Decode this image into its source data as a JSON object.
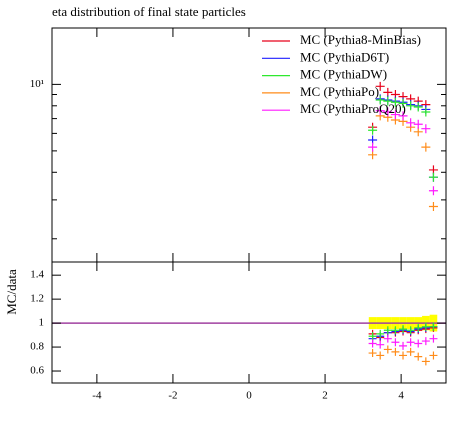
{
  "chart_data": [
    {
      "type": "scatter",
      "title": "eta distribution of final state particles",
      "x": [
        3.25,
        3.45,
        3.65,
        3.85,
        4.05,
        4.25,
        4.45,
        4.65,
        4.85
      ],
      "series": [
        {
          "name": "MC (Pythia8-MinBias)",
          "color": "#e8001a",
          "values": [
            6.4,
            9.8,
            9.2,
            9.0,
            8.8,
            8.6,
            8.4,
            8.1,
            4.1
          ]
        },
        {
          "name": "MC (PythiaD6T)",
          "color": "#1f1fff",
          "values": [
            5.6,
            8.6,
            8.5,
            8.4,
            8.3,
            8.1,
            8.0,
            7.7,
            3.8
          ]
        },
        {
          "name": "MC (PythiaDW)",
          "color": "#2ee82e",
          "values": [
            6.2,
            8.5,
            8.4,
            8.3,
            8.2,
            8.0,
            7.9,
            7.5,
            3.8
          ]
        },
        {
          "name": "MC (PythiaPo)",
          "color": "#ff8c1a",
          "values": [
            4.8,
            7.2,
            7.1,
            6.9,
            6.8,
            6.4,
            6.1,
            5.2,
            2.8
          ]
        },
        {
          "name": "MC (PythiaProQ20)",
          "color": "#ff1aff",
          "values": [
            5.2,
            7.6,
            7.5,
            7.3,
            7.2,
            6.7,
            6.6,
            6.3,
            3.3
          ]
        }
      ],
      "log_y": true,
      "ylim": [
        1.57,
        18
      ],
      "yticks": [
        {
          "value": 10,
          "label": "10¹"
        }
      ],
      "yminor_ticks": [
        2,
        3,
        4,
        5,
        6,
        7,
        8,
        9
      ],
      "legend": "top-right"
    },
    {
      "type": "ratio",
      "ylabel": "MC/data",
      "x": [
        3.25,
        3.45,
        3.65,
        3.85,
        4.05,
        4.25,
        4.45,
        4.65,
        4.85
      ],
      "reference": 1,
      "reference_color": "#a040a0",
      "band_color": "#ffff00",
      "data_errors": [
        0.05,
        0.05,
        0.05,
        0.05,
        0.05,
        0.05,
        0.05,
        0.06,
        0.07
      ],
      "series": [
        {
          "color": "#e8001a",
          "values": [
            0.91,
            0.88,
            0.92,
            0.92,
            0.93,
            0.92,
            0.94,
            0.95,
            0.96
          ]
        },
        {
          "color": "#1f1fff",
          "values": [
            0.87,
            0.89,
            0.92,
            0.93,
            0.94,
            0.93,
            0.95,
            0.96,
            0.97
          ]
        },
        {
          "color": "#2ee82e",
          "values": [
            0.89,
            0.91,
            0.94,
            0.94,
            0.95,
            0.94,
            0.96,
            0.97,
            0.97
          ]
        },
        {
          "color": "#ff8c1a",
          "values": [
            0.75,
            0.73,
            0.78,
            0.76,
            0.73,
            0.76,
            0.72,
            0.68,
            0.73
          ]
        },
        {
          "color": "#ff1aff",
          "values": [
            0.83,
            0.82,
            0.87,
            0.84,
            0.81,
            0.84,
            0.83,
            0.85,
            0.87
          ]
        }
      ],
      "xlim": [
        -5.18,
        5.18
      ],
      "xticks": [
        -4,
        -2,
        0,
        2,
        4
      ],
      "ylim": [
        0.5,
        1.51
      ],
      "yticks": [
        0.6,
        0.8,
        1,
        1.2,
        1.4
      ]
    }
  ]
}
